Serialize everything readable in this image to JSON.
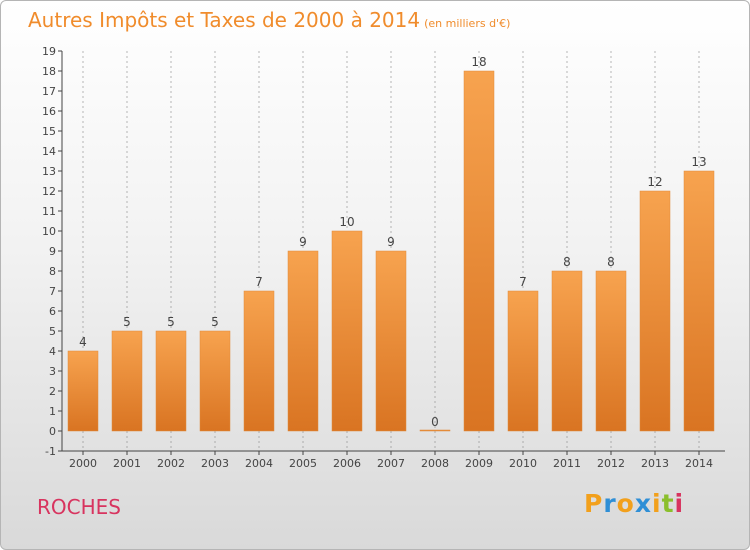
{
  "header": {
    "title": "Autres Impôts et Taxes de 2000 à 2014",
    "subtitle": "(en milliers d'€)"
  },
  "commune_label": "ROCHES",
  "logo": {
    "letters": [
      "P",
      "r",
      "o",
      "x",
      "i",
      "t",
      "i"
    ],
    "colors": [
      "#f2a01c",
      "#2f8fd6",
      "#f2a01c",
      "#2f8fd6",
      "#f2a01c",
      "#8bbf2c",
      "#d8345f"
    ]
  },
  "colors": {
    "bar_top": "#f7a34f",
    "bar_bottom": "#d97422",
    "accent": "#f08c2c",
    "axis": "#444444",
    "grid": "#888888"
  },
  "chart_data": {
    "type": "bar",
    "categories": [
      "2000",
      "2001",
      "2002",
      "2003",
      "2004",
      "2005",
      "2006",
      "2007",
      "2008",
      "2009",
      "2010",
      "2011",
      "2012",
      "2013",
      "2014"
    ],
    "values": [
      4,
      5,
      5,
      5,
      7,
      9,
      10,
      9,
      0,
      18,
      7,
      8,
      8,
      12,
      13
    ],
    "title": "Autres Impôts et Taxes de 2000 à 2014",
    "subtitle": "(en milliers d'€)",
    "ylim": [
      -1,
      19
    ],
    "yticks": [
      -1,
      0,
      1,
      2,
      3,
      4,
      5,
      6,
      7,
      8,
      9,
      10,
      11,
      12,
      13,
      14,
      15,
      16,
      17,
      18,
      19
    ],
    "grid": "dashed vertical",
    "legend": "none"
  }
}
